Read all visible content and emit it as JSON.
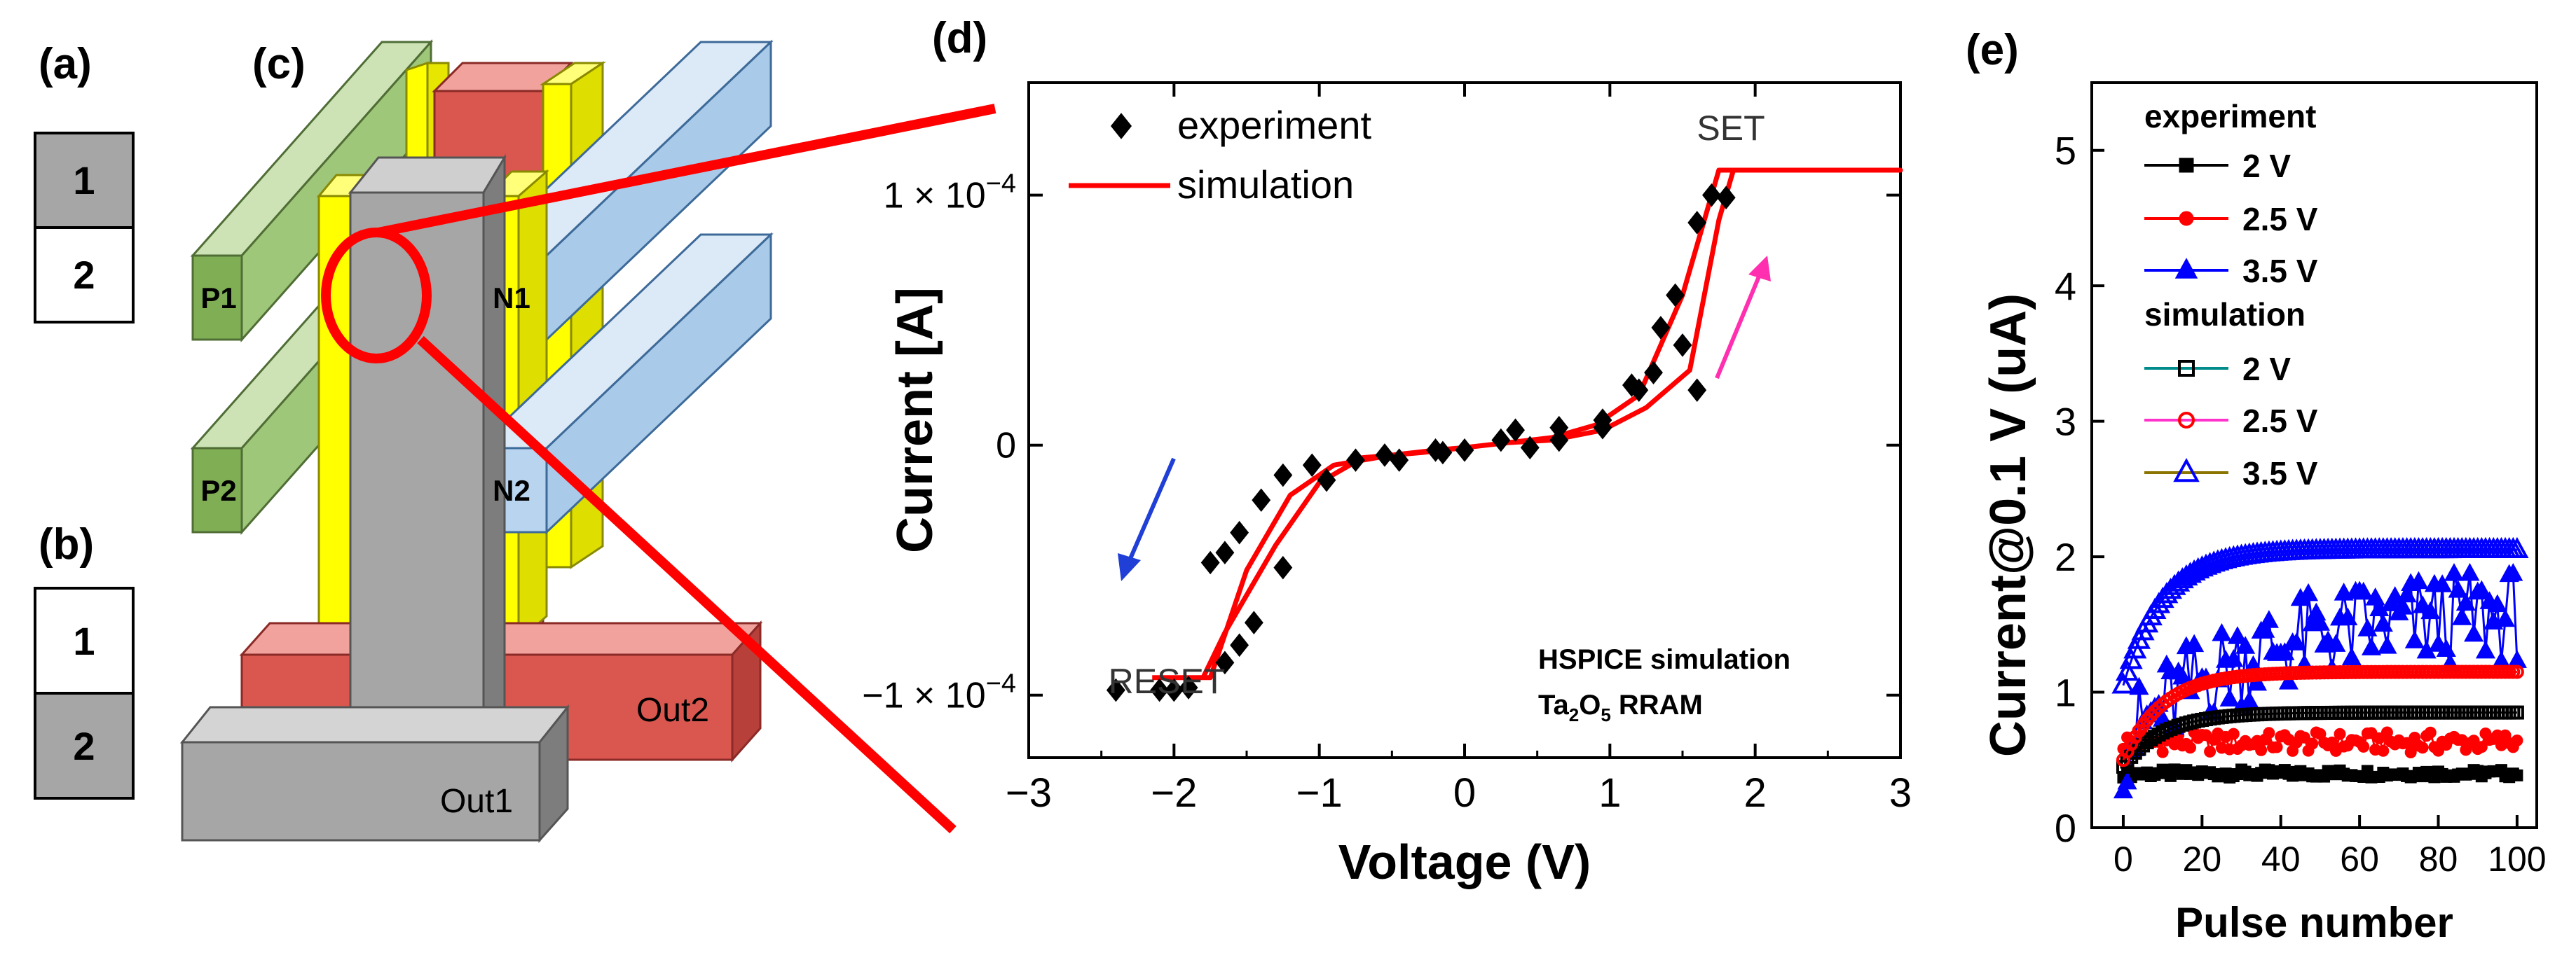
{
  "panels": {
    "a": {
      "label": "(a)",
      "cells": [
        "1",
        "2"
      ]
    },
    "b": {
      "label": "(b)",
      "cells": [
        "1",
        "2"
      ]
    },
    "c": {
      "label": "(c)",
      "blocks": {
        "p1": "P1",
        "p2": "P2",
        "n1": "N1",
        "n2": "N2",
        "out1": "Out1",
        "out2": "Out2"
      }
    },
    "d": {
      "label": "(d)"
    },
    "e": {
      "label": "(e)"
    }
  },
  "colors": {
    "green": "#8dbb62",
    "blue": "#a9cbe9",
    "red": "#d9574f",
    "gray": "#a6a6a6",
    "yellow": "#ffff00",
    "sim_red": "#ff0000",
    "arrow_blue": "#1f3fd6",
    "arrow_pink": "#ff2fb0"
  },
  "chart_data": [
    {
      "id": "d",
      "type": "scatter",
      "xlabel": "Voltage (V)",
      "ylabel": "Current [A]",
      "xlim": [
        -3,
        3
      ],
      "ylim": [
        -0.000125,
        0.000145
      ],
      "xticks": [
        -3,
        -2,
        -1,
        0,
        1,
        2,
        3
      ],
      "yticks": [
        {
          "value": 0.0001,
          "base": "1 × 10",
          "exp": "−4"
        },
        {
          "value": 0,
          "base": "0",
          "exp": ""
        },
        {
          "value": -0.0001,
          "base": "−1 × 10",
          "exp": "−4"
        }
      ],
      "legend": [
        {
          "label": "experiment",
          "marker": "diamond",
          "color": "#000000"
        },
        {
          "label": "simulation",
          "marker": "line",
          "color": "#ff0000"
        }
      ],
      "annotations": {
        "set": "SET",
        "reset": "RESET",
        "note1": "HSPICE simulation",
        "note2_main": "Ta",
        "note2_sub1": "2",
        "note2_mid": "O",
        "note2_sub2": "5",
        "note2_tail": " RRAM"
      },
      "series": [
        {
          "name": "experiment",
          "marker": "diamond",
          "color": "#000000",
          "points": [
            [
              -2.4,
              -9.8e-05
            ],
            [
              -2.1,
              -9.8e-05
            ],
            [
              -2.0,
              -9.8e-05
            ],
            [
              -1.9,
              -9.7e-05
            ],
            [
              -1.75,
              -4.7e-05
            ],
            [
              -1.65,
              -4.3e-05
            ],
            [
              -1.55,
              -3.5e-05
            ],
            [
              -1.4,
              -2.2e-05
            ],
            [
              -1.25,
              -1.2e-05
            ],
            [
              -1.05,
              -8e-06
            ],
            [
              -0.75,
              -6e-06
            ],
            [
              -0.45,
              -6e-06
            ],
            [
              -0.15,
              -3e-06
            ],
            [
              0.0,
              -2e-06
            ],
            [
              0.35,
              6e-06
            ],
            [
              0.65,
              7e-06
            ],
            [
              0.95,
              1e-05
            ],
            [
              1.15,
              2.4e-05
            ],
            [
              1.3,
              2.9e-05
            ],
            [
              1.45,
              6e-05
            ],
            [
              1.6,
              8.9e-05
            ],
            [
              1.7,
              0.0001
            ],
            [
              1.8,
              9.9e-05
            ],
            [
              1.6,
              2.2e-05
            ],
            [
              1.5,
              4e-05
            ],
            [
              1.35,
              4.7e-05
            ],
            [
              1.2,
              2.2e-05
            ],
            [
              0.95,
              7e-06
            ],
            [
              0.65,
              2e-06
            ],
            [
              0.45,
              -1e-06
            ],
            [
              0.25,
              2e-06
            ],
            [
              -0.2,
              -2e-06
            ],
            [
              -0.55,
              -4e-06
            ],
            [
              -0.95,
              -1.4e-05
            ],
            [
              -1.25,
              -4.9e-05
            ],
            [
              -1.45,
              -7.1e-05
            ],
            [
              -1.55,
              -8e-05
            ],
            [
              -1.65,
              -8.7e-05
            ]
          ]
        },
        {
          "name": "simulation",
          "marker": "line",
          "color": "#ff0000",
          "points": [
            [
              -2.15,
              -9.3e-05
            ],
            [
              -1.75,
              -9.3e-05
            ],
            [
              -1.5,
              -5e-05
            ],
            [
              -1.2,
              -2e-05
            ],
            [
              -0.9,
              -8e-06
            ],
            [
              -0.5,
              -4e-06
            ],
            [
              -0.2,
              -2e-06
            ],
            [
              0.0,
              -1e-06
            ],
            [
              0.3,
              1e-06
            ],
            [
              0.6,
              3e-06
            ],
            [
              0.9,
              8e-06
            ],
            [
              1.2,
              2e-05
            ],
            [
              1.5,
              6e-05
            ],
            [
              1.75,
              0.00011
            ],
            [
              3.0,
              0.00011
            ],
            [
              1.85,
              0.00011
            ],
            [
              1.75,
              9e-05
            ],
            [
              1.55,
              3e-05
            ],
            [
              1.25,
              1.5e-05
            ],
            [
              0.95,
              6e-06
            ],
            [
              0.6,
              2e-06
            ],
            [
              0.3,
              1e-06
            ],
            [
              0.0,
              -1e-06
            ],
            [
              -0.3,
              -3e-06
            ],
            [
              -0.7,
              -5e-06
            ],
            [
              -1.0,
              -1.5e-05
            ],
            [
              -1.3,
              -4e-05
            ],
            [
              -1.65,
              -7.5e-05
            ],
            [
              -1.8,
              -9.3e-05
            ],
            [
              -2.15,
              -9.3e-05
            ]
          ]
        }
      ]
    },
    {
      "id": "e",
      "type": "scatter",
      "xlabel": "Pulse number",
      "ylabel": "Current@0.1 V (uA)",
      "xlim": [
        -8,
        105
      ],
      "ylim": [
        0,
        5.5
      ],
      "xticks": [
        0,
        20,
        40,
        60,
        80,
        100
      ],
      "yticks": [
        0,
        1,
        2,
        3,
        4,
        5
      ],
      "legend_headers": [
        "experiment",
        "simulation"
      ],
      "series": [
        {
          "name": "2 V",
          "group": "experiment",
          "color": "#000000",
          "marker": "square",
          "filled": true,
          "kind": "exp",
          "base": 0.4,
          "amp": 0.0
        },
        {
          "name": "2.5 V",
          "group": "experiment",
          "color": "#ff0000",
          "marker": "circle",
          "filled": true,
          "kind": "exp",
          "base": 0.6,
          "amp": 0.15
        },
        {
          "name": "3.5 V",
          "group": "experiment",
          "color": "#0000ff",
          "marker": "triangle",
          "filled": true,
          "kind": "exp",
          "base": 1.5,
          "amp": 0.5
        },
        {
          "name": "2 V",
          "group": "simulation",
          "color": "#000000",
          "marker": "square",
          "filled": false,
          "kind": "sim",
          "final": 0.85,
          "start": 0.45
        },
        {
          "name": "2.5 V",
          "group": "simulation",
          "color": "#ff0000",
          "marker": "circle",
          "filled": false,
          "kind": "sim",
          "final": 1.15,
          "start": 0.5
        },
        {
          "name": "3.5 V",
          "group": "simulation",
          "color": "#0000ff",
          "marker": "triangle",
          "filled": false,
          "kind": "sim",
          "final": 2.05,
          "start": 1.05
        }
      ],
      "legend_line_colors": [
        "#000000",
        "#ff0000",
        "#0000ff",
        "#008b8b",
        "#ff33cc",
        "#8b7500"
      ]
    }
  ]
}
